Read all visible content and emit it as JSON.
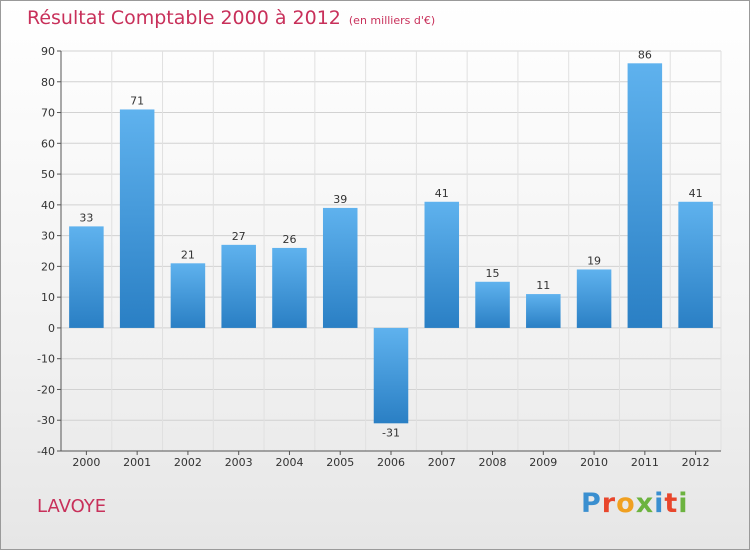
{
  "chart_data": {
    "type": "bar",
    "title": "Résultat Comptable 2000 à 2012",
    "unit_label": "(en milliers d'€)",
    "categories": [
      "2000",
      "2001",
      "2002",
      "2003",
      "2004",
      "2005",
      "2006",
      "2007",
      "2008",
      "2009",
      "2010",
      "2011",
      "2012"
    ],
    "values": [
      33,
      71,
      21,
      27,
      26,
      39,
      -31,
      41,
      15,
      11,
      19,
      86,
      41
    ],
    "ylim": [
      -40,
      90
    ],
    "yticks": [
      -40,
      -30,
      -20,
      -10,
      0,
      10,
      20,
      30,
      40,
      50,
      60,
      70,
      80,
      90
    ],
    "xlabel": "",
    "ylabel": "",
    "grid": true,
    "bar_color": "#3d93d6"
  },
  "commune": "LAVOYE",
  "logo": {
    "letters": [
      "P",
      "r",
      "o",
      "x",
      "i",
      "t",
      "i"
    ],
    "colors": [
      "#3a8fd0",
      "#e8462c",
      "#f0a020",
      "#6cb33f",
      "#3a8fd0",
      "#e8462c",
      "#6cb33f"
    ]
  }
}
